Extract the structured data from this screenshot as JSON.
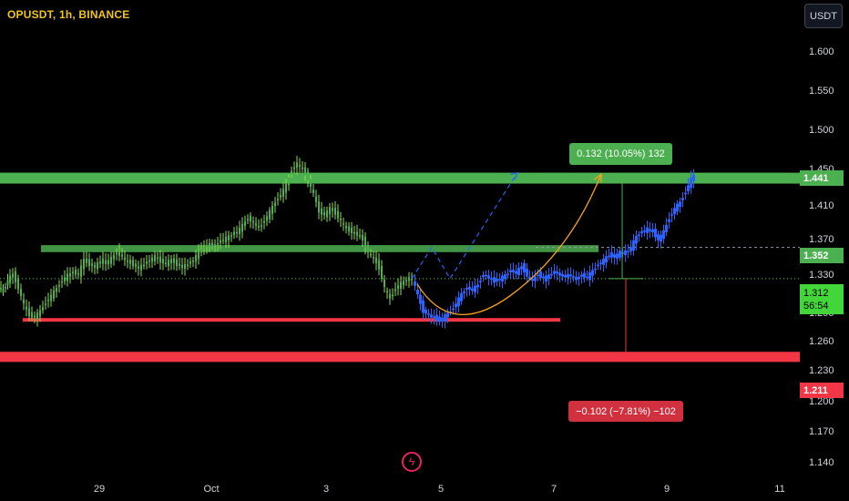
{
  "header": {
    "symbol": "OPUSDT, 1h, BINANCE",
    "currency": "USDT"
  },
  "colors": {
    "background": "#000000",
    "bull_candle": "#4caf50",
    "bull_candle_wick": "#8be04e",
    "projection_candle": "#2962ff",
    "resistance_zone": "#4caf50",
    "support_line": "#f23645",
    "support_zone": "#f23645",
    "curve": "#f7a21b",
    "dashed_path": "#2962ff"
  },
  "price_tags": {
    "resistance": "1.441",
    "mid": "1.352",
    "current": "1.312",
    "countdown": "56:54",
    "support": "1.211"
  },
  "measure": {
    "up_label": "0.132 (10.05%) 132",
    "down_label": "−0.102 (−7.81%) −102"
  },
  "chart_data": {
    "type": "candlestick",
    "title": "",
    "y_ticks": [
      "1.600",
      "1.550",
      "1.500",
      "1.450",
      "1.410",
      "1.370",
      "1.330",
      "1.290",
      "1.260",
      "1.230",
      "1.200",
      "1.170",
      "1.140"
    ],
    "x_ticks": [
      "29",
      "Oct",
      "3",
      "5",
      "7",
      "9",
      "11"
    ],
    "ylim": [
      1.125,
      1.625
    ],
    "levels": {
      "resistance_zone": [
        1.434,
        1.448
      ],
      "mid_zone": [
        1.346,
        1.355
      ],
      "support_line": 1.259,
      "support_zone": [
        1.205,
        1.218
      ]
    },
    "measurement": {
      "from": 1.312,
      "up_to": 1.444,
      "down_to": 1.21,
      "up_change": 0.132,
      "up_pct": 10.05,
      "down_change": -0.102,
      "down_pct": -7.81
    },
    "price_path": [
      [
        0,
        1.3
      ],
      [
        5,
        1.296
      ],
      [
        10,
        1.31
      ],
      [
        16,
        1.318
      ],
      [
        22,
        1.3
      ],
      [
        28,
        1.278
      ],
      [
        34,
        1.265
      ],
      [
        40,
        1.263
      ],
      [
        46,
        1.27
      ],
      [
        52,
        1.282
      ],
      [
        58,
        1.29
      ],
      [
        64,
        1.3
      ],
      [
        70,
        1.31
      ],
      [
        76,
        1.316
      ],
      [
        82,
        1.32
      ],
      [
        88,
        1.318
      ],
      [
        94,
        1.336
      ],
      [
        100,
        1.33
      ],
      [
        106,
        1.328
      ],
      [
        112,
        1.334
      ],
      [
        118,
        1.332
      ],
      [
        124,
        1.338
      ],
      [
        130,
        1.346
      ],
      [
        136,
        1.34
      ],
      [
        142,
        1.334
      ],
      [
        148,
        1.33
      ],
      [
        154,
        1.326
      ],
      [
        160,
        1.33
      ],
      [
        166,
        1.336
      ],
      [
        172,
        1.34
      ],
      [
        178,
        1.334
      ],
      [
        184,
        1.332
      ],
      [
        190,
        1.336
      ],
      [
        196,
        1.33
      ],
      [
        202,
        1.328
      ],
      [
        208,
        1.33
      ],
      [
        214,
        1.336
      ],
      [
        220,
        1.346
      ],
      [
        226,
        1.352
      ],
      [
        232,
        1.357
      ],
      [
        238,
        1.355
      ],
      [
        244,
        1.36
      ],
      [
        250,
        1.364
      ],
      [
        256,
        1.368
      ],
      [
        262,
        1.372
      ],
      [
        268,
        1.38
      ],
      [
        274,
        1.39
      ],
      [
        280,
        1.384
      ],
      [
        286,
        1.378
      ],
      [
        292,
        1.386
      ],
      [
        298,
        1.398
      ],
      [
        304,
        1.41
      ],
      [
        310,
        1.42
      ],
      [
        316,
        1.432
      ],
      [
        322,
        1.452
      ],
      [
        328,
        1.46
      ],
      [
        334,
        1.452
      ],
      [
        340,
        1.44
      ],
      [
        346,
        1.42
      ],
      [
        352,
        1.398
      ],
      [
        358,
        1.394
      ],
      [
        364,
        1.402
      ],
      [
        370,
        1.396
      ],
      [
        376,
        1.386
      ],
      [
        382,
        1.376
      ],
      [
        388,
        1.372
      ],
      [
        394,
        1.37
      ],
      [
        400,
        1.362
      ],
      [
        406,
        1.346
      ],
      [
        412,
        1.338
      ],
      [
        418,
        1.326
      ],
      [
        424,
        1.3
      ],
      [
        430,
        1.286
      ],
      [
        436,
        1.3
      ],
      [
        442,
        1.306
      ],
      [
        448,
        1.31
      ],
      [
        454,
        1.312
      ]
    ],
    "projection_path": [
      [
        454,
        1.312
      ],
      [
        460,
        1.29
      ],
      [
        466,
        1.27
      ],
      [
        472,
        1.266
      ],
      [
        478,
        1.262
      ],
      [
        484,
        1.258
      ],
      [
        490,
        1.264
      ],
      [
        496,
        1.27
      ],
      [
        502,
        1.28
      ],
      [
        508,
        1.292
      ],
      [
        514,
        1.3
      ],
      [
        520,
        1.298
      ],
      [
        526,
        1.304
      ],
      [
        532,
        1.318
      ],
      [
        538,
        1.314
      ],
      [
        544,
        1.308
      ],
      [
        550,
        1.312
      ],
      [
        556,
        1.316
      ],
      [
        562,
        1.322
      ],
      [
        568,
        1.32
      ],
      [
        574,
        1.328
      ],
      [
        580,
        1.316
      ],
      [
        586,
        1.31
      ],
      [
        592,
        1.318
      ],
      [
        598,
        1.312
      ],
      [
        604,
        1.316
      ],
      [
        610,
        1.32
      ],
      [
        616,
        1.318
      ],
      [
        622,
        1.314
      ],
      [
        628,
        1.316
      ],
      [
        634,
        1.312
      ],
      [
        640,
        1.316
      ],
      [
        646,
        1.314
      ],
      [
        652,
        1.322
      ],
      [
        658,
        1.33
      ],
      [
        664,
        1.336
      ],
      [
        670,
        1.342
      ],
      [
        676,
        1.34
      ],
      [
        682,
        1.346
      ],
      [
        688,
        1.344
      ],
      [
        694,
        1.352
      ],
      [
        700,
        1.366
      ],
      [
        706,
        1.372
      ],
      [
        712,
        1.376
      ],
      [
        718,
        1.372
      ],
      [
        724,
        1.362
      ],
      [
        730,
        1.372
      ],
      [
        736,
        1.39
      ],
      [
        742,
        1.402
      ],
      [
        748,
        1.41
      ],
      [
        754,
        1.424
      ],
      [
        760,
        1.44
      ],
      [
        764,
        1.444
      ]
    ]
  }
}
